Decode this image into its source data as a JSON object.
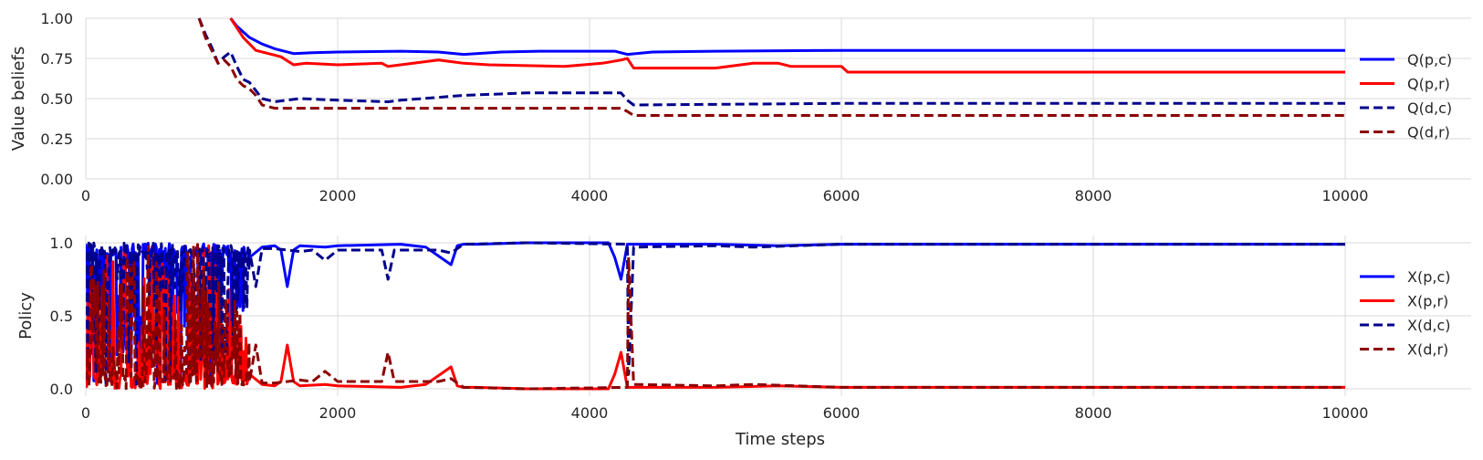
{
  "figure": {
    "xlabel": "Time steps"
  },
  "colors": {
    "q_pc": "#0000ff",
    "q_pr": "#ff0000",
    "q_dc": "#00008b",
    "q_dr": "#8b0000",
    "grid": "#d8d8d8"
  },
  "chart_data": [
    {
      "type": "line",
      "ylabel": "Value beliefs",
      "xlim": [
        0,
        11000
      ],
      "ylim": [
        0,
        1.0
      ],
      "xticks": [
        "0",
        "2000",
        "4000",
        "6000",
        "8000",
        "10000"
      ],
      "yticks": [
        "0.00",
        "0.25",
        "0.50",
        "0.75",
        "1.00"
      ],
      "xtick_values": [
        0,
        2000,
        4000,
        6000,
        8000,
        10000
      ],
      "ytick_values": [
        0,
        0.25,
        0.5,
        0.75,
        1.0
      ],
      "grid": true,
      "legend": "right",
      "series": [
        {
          "name": "Q(p,c)",
          "style": "solid",
          "color": "#0000ff",
          "x": [
            1150,
            1200,
            1300,
            1400,
            1500,
            1650,
            1800,
            2000,
            2500,
            2800,
            3000,
            3300,
            3600,
            4000,
            4200,
            4300,
            4500,
            5000,
            6000,
            8000,
            10000
          ],
          "y": [
            1.0,
            0.95,
            0.88,
            0.84,
            0.81,
            0.78,
            0.785,
            0.79,
            0.795,
            0.79,
            0.775,
            0.79,
            0.795,
            0.795,
            0.795,
            0.775,
            0.79,
            0.795,
            0.8,
            0.8,
            0.8
          ]
        },
        {
          "name": "Q(p,r)",
          "style": "solid",
          "color": "#ff0000",
          "x": [
            1150,
            1250,
            1350,
            1450,
            1550,
            1650,
            1750,
            2000,
            2350,
            2400,
            2700,
            2800,
            2900,
            3000,
            3200,
            3800,
            4100,
            4250,
            4300,
            4350,
            5000,
            5200,
            5300,
            5500,
            5600,
            6000,
            6050,
            10000
          ],
          "y": [
            1.0,
            0.88,
            0.8,
            0.78,
            0.76,
            0.71,
            0.72,
            0.71,
            0.72,
            0.7,
            0.73,
            0.74,
            0.73,
            0.72,
            0.71,
            0.7,
            0.72,
            0.74,
            0.75,
            0.69,
            0.69,
            0.71,
            0.72,
            0.72,
            0.7,
            0.7,
            0.665,
            0.665
          ]
        },
        {
          "name": "Q(d,c)",
          "style": "dashed",
          "color": "#00008b",
          "x": [
            900,
            950,
            1000,
            1050,
            1100,
            1150,
            1200,
            1250,
            1300,
            1350,
            1400,
            1500,
            1700,
            2000,
            2400,
            2500,
            3000,
            3500,
            4250,
            4300,
            4350,
            6000,
            10000
          ],
          "y": [
            1.0,
            0.9,
            0.82,
            0.72,
            0.76,
            0.79,
            0.7,
            0.62,
            0.6,
            0.55,
            0.5,
            0.48,
            0.5,
            0.49,
            0.48,
            0.49,
            0.52,
            0.535,
            0.535,
            0.49,
            0.46,
            0.47,
            0.47
          ]
        },
        {
          "name": "Q(d,r)",
          "style": "dashed",
          "color": "#8b0000",
          "x": [
            900,
            950,
            1000,
            1050,
            1100,
            1150,
            1200,
            1250,
            1300,
            1350,
            1400,
            1500,
            2000,
            2400,
            3000,
            3500,
            4250,
            4300,
            4350,
            10000
          ],
          "y": [
            1.0,
            0.88,
            0.8,
            0.72,
            0.74,
            0.7,
            0.62,
            0.58,
            0.56,
            0.52,
            0.46,
            0.44,
            0.44,
            0.44,
            0.44,
            0.44,
            0.44,
            0.42,
            0.395,
            0.395
          ]
        }
      ]
    },
    {
      "type": "line",
      "ylabel": "Policy",
      "xlim": [
        0,
        11000
      ],
      "ylim": [
        -0.05,
        1.05
      ],
      "xticks": [
        "0",
        "2000",
        "4000",
        "6000",
        "8000",
        "10000"
      ],
      "yticks": [
        "0.0",
        "0.5",
        "1.0"
      ],
      "xtick_values": [
        0,
        2000,
        4000,
        6000,
        8000,
        10000
      ],
      "ytick_values": [
        0,
        0.5,
        1.0
      ],
      "grid": true,
      "legend": "right",
      "series": [
        {
          "name": "X(p,c)",
          "style": "solid",
          "color": "#0000ff",
          "x": [
            1300,
            1400,
            1500,
            1550,
            1600,
            1650,
            1700,
            1900,
            2000,
            2500,
            2700,
            2900,
            2950,
            3000,
            3100,
            3500,
            4000,
            4150,
            4200,
            4250,
            4300,
            4400,
            5000,
            5500,
            6000,
            8000,
            10000
          ],
          "y": [
            0.9,
            0.97,
            0.98,
            0.95,
            0.7,
            0.95,
            0.98,
            0.97,
            0.98,
            0.99,
            0.97,
            0.85,
            0.98,
            0.99,
            0.99,
            1.0,
            1.0,
            1.0,
            0.9,
            0.75,
            0.99,
            0.99,
            0.99,
            0.98,
            0.99,
            0.99,
            0.99
          ]
        },
        {
          "name": "X(p,r)",
          "style": "solid",
          "color": "#ff0000",
          "x": [
            1300,
            1400,
            1500,
            1550,
            1600,
            1650,
            1700,
            1900,
            2000,
            2500,
            2700,
            2900,
            2950,
            3000,
            3100,
            3500,
            4000,
            4150,
            4200,
            4250,
            4300,
            4400,
            5000,
            5500,
            6000,
            8000,
            10000
          ],
          "y": [
            0.1,
            0.03,
            0.02,
            0.05,
            0.3,
            0.05,
            0.02,
            0.03,
            0.02,
            0.01,
            0.03,
            0.15,
            0.02,
            0.01,
            0.01,
            0.0,
            0.0,
            0.0,
            0.1,
            0.25,
            0.01,
            0.01,
            0.01,
            0.02,
            0.01,
            0.01,
            0.01
          ]
        },
        {
          "name": "X(d,c)",
          "style": "dashed",
          "color": "#00008b",
          "x": [
            1300,
            1350,
            1400,
            1500,
            1700,
            1800,
            1900,
            2000,
            2350,
            2400,
            2450,
            2800,
            2900,
            3000,
            3500,
            4300,
            4310,
            4350,
            5000,
            5300,
            6000,
            10000
          ],
          "y": [
            0.95,
            0.7,
            0.96,
            0.96,
            0.94,
            0.95,
            0.88,
            0.95,
            0.95,
            0.75,
            0.95,
            0.95,
            0.93,
            0.99,
            1.0,
            0.99,
            0.1,
            0.97,
            0.98,
            0.97,
            0.99,
            0.99
          ]
        },
        {
          "name": "X(d,r)",
          "style": "dashed",
          "color": "#8b0000",
          "x": [
            1300,
            1350,
            1400,
            1500,
            1700,
            1800,
            1900,
            2000,
            2350,
            2400,
            2450,
            2800,
            2900,
            3000,
            3500,
            4300,
            4310,
            4350,
            5000,
            5300,
            6000,
            10000
          ],
          "y": [
            0.05,
            0.3,
            0.04,
            0.04,
            0.06,
            0.05,
            0.12,
            0.05,
            0.05,
            0.25,
            0.05,
            0.05,
            0.07,
            0.01,
            0.0,
            0.01,
            0.9,
            0.03,
            0.02,
            0.03,
            0.01,
            0.01
          ]
        }
      ]
    }
  ]
}
